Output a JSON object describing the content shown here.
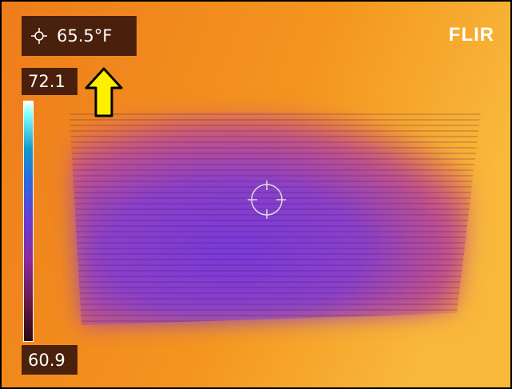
{
  "spot_reading": "65.5°F",
  "scale": {
    "max": "72.1",
    "min": "60.9"
  },
  "logo": "FLIR"
}
